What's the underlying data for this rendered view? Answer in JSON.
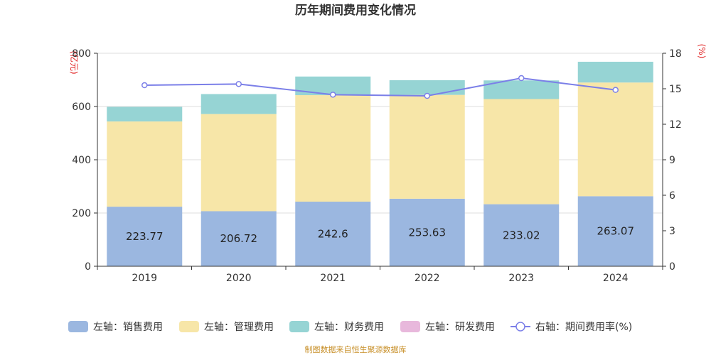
{
  "chart_data": {
    "type": "bar",
    "title": "历年期间费用变化情况",
    "categories": [
      "2019",
      "2020",
      "2021",
      "2022",
      "2023",
      "2024"
    ],
    "left_axis": {
      "unit": "(亿元)",
      "ylim": [
        0,
        800
      ],
      "ticks": [
        "0",
        "200",
        "400",
        "600",
        "800"
      ]
    },
    "right_axis": {
      "unit": "(%)",
      "ylim": [
        0,
        18
      ],
      "ticks": [
        "0",
        "3",
        "6",
        "9",
        "12",
        "15",
        "18"
      ]
    },
    "series": [
      {
        "name": "左轴：销售费用",
        "color": "#9bb7e0",
        "values": [
          223.77,
          206.72,
          242.6,
          253.63,
          233.02,
          263.07
        ],
        "labels": [
          "223.77",
          "206.72",
          "242.6",
          "253.63",
          "233.02",
          "263.07"
        ]
      },
      {
        "name": "左轴：管理费用",
        "color": "#f7e6a8",
        "values": [
          320,
          365,
          400,
          390,
          395,
          427
        ]
      },
      {
        "name": "左轴：财务费用",
        "color": "#96d4d4",
        "values": [
          55,
          75,
          70,
          55,
          70,
          78
        ]
      },
      {
        "name": "左轴：研发费用",
        "color": "#e8b8dc",
        "values": [
          0,
          0,
          0,
          0,
          0,
          0
        ]
      }
    ],
    "line_series": {
      "name": "右轴：期间费用率(%)",
      "color": "#7b7fe8",
      "values": [
        15.3,
        15.4,
        14.5,
        14.4,
        15.9,
        14.9
      ]
    },
    "grid": true,
    "legend_position": "bottom"
  },
  "footer": "制图数据来自恒生聚源数据库"
}
